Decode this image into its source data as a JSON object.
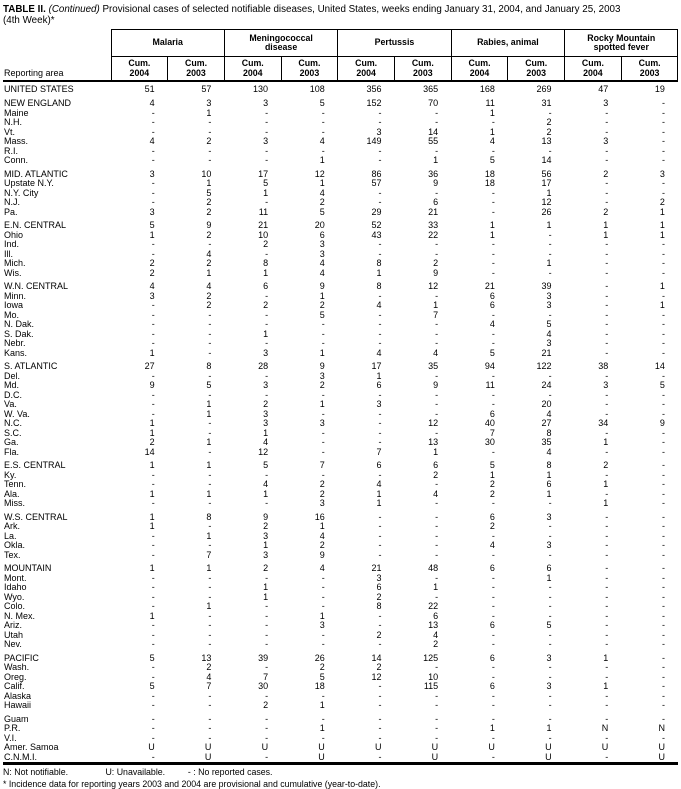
{
  "title": {
    "label": "TABLE II.",
    "continued": "(Continued)",
    "rest": " Provisional cases of selected notifiable diseases, United States, weeks ending January 31, 2004, and January 25, 2003",
    "line2": "(4th Week)*"
  },
  "header": {
    "reporting_area": "Reporting area",
    "groups": [
      "Malaria",
      "Meningococcal\ndisease",
      "Pertussis",
      "Rabies, animal",
      "Rocky Mountain\nspotted fever"
    ],
    "subcolumns": [
      "Cum.\n2004",
      "Cum.\n2003",
      "Cum.\n2004",
      "Cum.\n2003",
      "Cum.\n2004",
      "Cum.\n2003",
      "Cum.\n2004",
      "Cum.\n2003",
      "Cum.\n2004",
      "Cum.\n2003"
    ]
  },
  "sections": [
    {
      "rows": [
        {
          "label": "UNITED STATES",
          "values": [
            "51",
            "57",
            "130",
            "108",
            "356",
            "365",
            "168",
            "269",
            "47",
            "19"
          ]
        }
      ]
    },
    {
      "rows": [
        {
          "label": "NEW ENGLAND",
          "values": [
            "4",
            "3",
            "3",
            "5",
            "152",
            "70",
            "11",
            "31",
            "3",
            "-"
          ]
        },
        {
          "label": "Maine",
          "values": [
            "-",
            "1",
            "-",
            "-",
            "-",
            "-",
            "1",
            "-",
            "-",
            "-"
          ]
        },
        {
          "label": "N.H.",
          "values": [
            "-",
            "-",
            "-",
            "-",
            "-",
            "-",
            "-",
            "2",
            "-",
            "-"
          ]
        },
        {
          "label": "Vt.",
          "values": [
            "-",
            "-",
            "-",
            "-",
            "3",
            "14",
            "1",
            "2",
            "-",
            "-"
          ]
        },
        {
          "label": "Mass.",
          "values": [
            "4",
            "2",
            "3",
            "4",
            "149",
            "55",
            "4",
            "13",
            "3",
            "-"
          ]
        },
        {
          "label": "R.I.",
          "values": [
            "-",
            "-",
            "-",
            "-",
            "-",
            "-",
            "-",
            "-",
            "-",
            "-"
          ]
        },
        {
          "label": "Conn.",
          "values": [
            "-",
            "-",
            "-",
            "1",
            "-",
            "1",
            "5",
            "14",
            "-",
            "-"
          ]
        }
      ]
    },
    {
      "rows": [
        {
          "label": "MID. ATLANTIC",
          "values": [
            "3",
            "10",
            "17",
            "12",
            "86",
            "36",
            "18",
            "56",
            "2",
            "3"
          ]
        },
        {
          "label": "Upstate N.Y.",
          "values": [
            "-",
            "1",
            "5",
            "1",
            "57",
            "9",
            "18",
            "17",
            "-",
            "-"
          ]
        },
        {
          "label": "N.Y. City",
          "values": [
            "-",
            "5",
            "1",
            "4",
            "-",
            "-",
            "-",
            "1",
            "-",
            "-"
          ]
        },
        {
          "label": "N.J.",
          "values": [
            "-",
            "2",
            "-",
            "2",
            "-",
            "6",
            "-",
            "12",
            "-",
            "2"
          ]
        },
        {
          "label": "Pa.",
          "values": [
            "3",
            "2",
            "11",
            "5",
            "29",
            "21",
            "-",
            "26",
            "2",
            "1"
          ]
        }
      ]
    },
    {
      "rows": [
        {
          "label": "E.N. CENTRAL",
          "values": [
            "5",
            "9",
            "21",
            "20",
            "52",
            "33",
            "1",
            "1",
            "1",
            "1"
          ]
        },
        {
          "label": "Ohio",
          "values": [
            "1",
            "2",
            "10",
            "6",
            "43",
            "22",
            "1",
            "-",
            "1",
            "1"
          ]
        },
        {
          "label": "Ind.",
          "values": [
            "-",
            "-",
            "2",
            "3",
            "-",
            "-",
            "-",
            "-",
            "-",
            "-"
          ]
        },
        {
          "label": "Ill.",
          "values": [
            "-",
            "4",
            "-",
            "3",
            "-",
            "-",
            "-",
            "-",
            "-",
            "-"
          ]
        },
        {
          "label": "Mich.",
          "values": [
            "2",
            "2",
            "8",
            "4",
            "8",
            "2",
            "-",
            "1",
            "-",
            "-"
          ]
        },
        {
          "label": "Wis.",
          "values": [
            "2",
            "1",
            "1",
            "4",
            "1",
            "9",
            "-",
            "-",
            "-",
            "-"
          ]
        }
      ]
    },
    {
      "rows": [
        {
          "label": "W.N. CENTRAL",
          "values": [
            "4",
            "4",
            "6",
            "9",
            "8",
            "12",
            "21",
            "39",
            "-",
            "1"
          ]
        },
        {
          "label": "Minn.",
          "values": [
            "3",
            "2",
            "-",
            "1",
            "-",
            "-",
            "6",
            "3",
            "-",
            "-"
          ]
        },
        {
          "label": "Iowa",
          "values": [
            "-",
            "2",
            "2",
            "2",
            "4",
            "1",
            "6",
            "3",
            "-",
            "1"
          ]
        },
        {
          "label": "Mo.",
          "values": [
            "-",
            "-",
            "-",
            "5",
            "-",
            "7",
            "-",
            "-",
            "-",
            "-"
          ]
        },
        {
          "label": "N. Dak.",
          "values": [
            "-",
            "-",
            "-",
            "-",
            "-",
            "-",
            "4",
            "5",
            "-",
            "-"
          ]
        },
        {
          "label": "S. Dak.",
          "values": [
            "-",
            "-",
            "1",
            "-",
            "-",
            "-",
            "-",
            "4",
            "-",
            "-"
          ]
        },
        {
          "label": "Nebr.",
          "values": [
            "-",
            "-",
            "-",
            "-",
            "-",
            "-",
            "-",
            "3",
            "-",
            "-"
          ]
        },
        {
          "label": "Kans.",
          "values": [
            "1",
            "-",
            "3",
            "1",
            "4",
            "4",
            "5",
            "21",
            "-",
            "-"
          ]
        }
      ]
    },
    {
      "rows": [
        {
          "label": "S. ATLANTIC",
          "values": [
            "27",
            "8",
            "28",
            "9",
            "17",
            "35",
            "94",
            "122",
            "38",
            "14"
          ]
        },
        {
          "label": "Del.",
          "values": [
            "-",
            "-",
            "-",
            "3",
            "1",
            "-",
            "-",
            "-",
            "-",
            "-"
          ]
        },
        {
          "label": "Md.",
          "values": [
            "9",
            "5",
            "3",
            "2",
            "6",
            "9",
            "11",
            "24",
            "3",
            "5"
          ]
        },
        {
          "label": "D.C.",
          "values": [
            "-",
            "-",
            "-",
            "-",
            "-",
            "-",
            "-",
            "-",
            "-",
            "-"
          ]
        },
        {
          "label": "Va.",
          "values": [
            "-",
            "1",
            "2",
            "1",
            "3",
            "-",
            "-",
            "20",
            "-",
            "-"
          ]
        },
        {
          "label": "W. Va.",
          "values": [
            "-",
            "1",
            "3",
            "-",
            "-",
            "-",
            "6",
            "4",
            "-",
            "-"
          ]
        },
        {
          "label": "N.C.",
          "values": [
            "1",
            "-",
            "3",
            "3",
            "-",
            "12",
            "40",
            "27",
            "34",
            "9"
          ]
        },
        {
          "label": "S.C.",
          "values": [
            "1",
            "-",
            "1",
            "-",
            "-",
            "-",
            "7",
            "8",
            "-",
            "-"
          ]
        },
        {
          "label": "Ga.",
          "values": [
            "2",
            "1",
            "4",
            "-",
            "-",
            "13",
            "30",
            "35",
            "1",
            "-"
          ]
        },
        {
          "label": "Fla.",
          "values": [
            "14",
            "-",
            "12",
            "-",
            "7",
            "1",
            "-",
            "4",
            "-",
            "-"
          ]
        }
      ]
    },
    {
      "rows": [
        {
          "label": "E.S. CENTRAL",
          "values": [
            "1",
            "1",
            "5",
            "7",
            "6",
            "6",
            "5",
            "8",
            "2",
            "-"
          ]
        },
        {
          "label": "Ky.",
          "values": [
            "-",
            "-",
            "-",
            "-",
            "-",
            "2",
            "1",
            "1",
            "-",
            "-"
          ]
        },
        {
          "label": "Tenn.",
          "values": [
            "-",
            "-",
            "4",
            "2",
            "4",
            "-",
            "2",
            "6",
            "1",
            "-"
          ]
        },
        {
          "label": "Ala.",
          "values": [
            "1",
            "1",
            "1",
            "2",
            "1",
            "4",
            "2",
            "1",
            "-",
            "-"
          ]
        },
        {
          "label": "Miss.",
          "values": [
            "-",
            "-",
            "-",
            "3",
            "1",
            "-",
            "-",
            "-",
            "1",
            "-"
          ]
        }
      ]
    },
    {
      "rows": [
        {
          "label": "W.S. CENTRAL",
          "values": [
            "1",
            "8",
            "9",
            "16",
            "-",
            "-",
            "6",
            "3",
            "-",
            "-"
          ]
        },
        {
          "label": "Ark.",
          "values": [
            "1",
            "-",
            "2",
            "1",
            "-",
            "-",
            "2",
            "-",
            "-",
            "-"
          ]
        },
        {
          "label": "La.",
          "values": [
            "-",
            "1",
            "3",
            "4",
            "-",
            "-",
            "-",
            "-",
            "-",
            "-"
          ]
        },
        {
          "label": "Okla.",
          "values": [
            "-",
            "-",
            "1",
            "2",
            "-",
            "-",
            "4",
            "3",
            "-",
            "-"
          ]
        },
        {
          "label": "Tex.",
          "values": [
            "-",
            "7",
            "3",
            "9",
            "-",
            "-",
            "-",
            "-",
            "-",
            "-"
          ]
        }
      ]
    },
    {
      "rows": [
        {
          "label": "MOUNTAIN",
          "values": [
            "1",
            "1",
            "2",
            "4",
            "21",
            "48",
            "6",
            "6",
            "-",
            "-"
          ]
        },
        {
          "label": "Mont.",
          "values": [
            "-",
            "-",
            "-",
            "-",
            "3",
            "-",
            "-",
            "1",
            "-",
            "-"
          ]
        },
        {
          "label": "Idaho",
          "values": [
            "-",
            "-",
            "1",
            "-",
            "6",
            "1",
            "-",
            "-",
            "-",
            "-"
          ]
        },
        {
          "label": "Wyo.",
          "values": [
            "-",
            "-",
            "1",
            "-",
            "2",
            "-",
            "-",
            "-",
            "-",
            "-"
          ]
        },
        {
          "label": "Colo.",
          "values": [
            "-",
            "1",
            "-",
            "-",
            "8",
            "22",
            "-",
            "-",
            "-",
            "-"
          ]
        },
        {
          "label": "N. Mex.",
          "values": [
            "1",
            "-",
            "-",
            "1",
            "-",
            "6",
            "-",
            "-",
            "-",
            "-"
          ]
        },
        {
          "label": "Ariz.",
          "values": [
            "-",
            "-",
            "-",
            "3",
            "-",
            "13",
            "6",
            "5",
            "-",
            "-"
          ]
        },
        {
          "label": "Utah",
          "values": [
            "-",
            "-",
            "-",
            "-",
            "2",
            "4",
            "-",
            "-",
            "-",
            "-"
          ]
        },
        {
          "label": "Nev.",
          "values": [
            "-",
            "-",
            "-",
            "-",
            "-",
            "2",
            "-",
            "-",
            "-",
            "-"
          ]
        }
      ]
    },
    {
      "rows": [
        {
          "label": "PACIFIC",
          "values": [
            "5",
            "13",
            "39",
            "26",
            "14",
            "125",
            "6",
            "3",
            "1",
            "-"
          ]
        },
        {
          "label": "Wash.",
          "values": [
            "-",
            "2",
            "-",
            "2",
            "2",
            "-",
            "-",
            "-",
            "-",
            "-"
          ]
        },
        {
          "label": "Oreg.",
          "values": [
            "-",
            "4",
            "7",
            "5",
            "12",
            "10",
            "-",
            "-",
            "-",
            "-"
          ]
        },
        {
          "label": "Calif.",
          "values": [
            "5",
            "7",
            "30",
            "18",
            "-",
            "115",
            "6",
            "3",
            "1",
            "-"
          ]
        },
        {
          "label": "Alaska",
          "values": [
            "-",
            "-",
            "-",
            "-",
            "-",
            "-",
            "-",
            "-",
            "-",
            "-"
          ]
        },
        {
          "label": "Hawaii",
          "values": [
            "-",
            "-",
            "2",
            "1",
            "-",
            "-",
            "-",
            "-",
            "-",
            "-"
          ]
        }
      ]
    },
    {
      "rows": [
        {
          "label": "Guam",
          "values": [
            "-",
            "-",
            "-",
            "-",
            "-",
            "-",
            "-",
            "-",
            "-",
            "-"
          ]
        },
        {
          "label": "P.R.",
          "values": [
            "-",
            "-",
            "-",
            "1",
            "-",
            "-",
            "1",
            "1",
            "N",
            "N"
          ]
        },
        {
          "label": "V.I.",
          "values": [
            "-",
            "-",
            "-",
            "-",
            "-",
            "-",
            "-",
            "-",
            "-",
            "-"
          ]
        },
        {
          "label": "Amer. Samoa",
          "values": [
            "U",
            "U",
            "U",
            "U",
            "U",
            "U",
            "U",
            "U",
            "U",
            "U"
          ]
        },
        {
          "label": "C.N.M.I.",
          "values": [
            "-",
            "U",
            "-",
            "U",
            "-",
            "U",
            "-",
            "U",
            "-",
            "U"
          ]
        }
      ]
    }
  ],
  "footnotes": {
    "legend1": "N: Not notifiable.",
    "legend2": "U: Unavailable.",
    "legend3": "- : No reported cases.",
    "note": "* Incidence data for reporting years 2003 and 2004 are provisional and cumulative (year-to-date)."
  }
}
